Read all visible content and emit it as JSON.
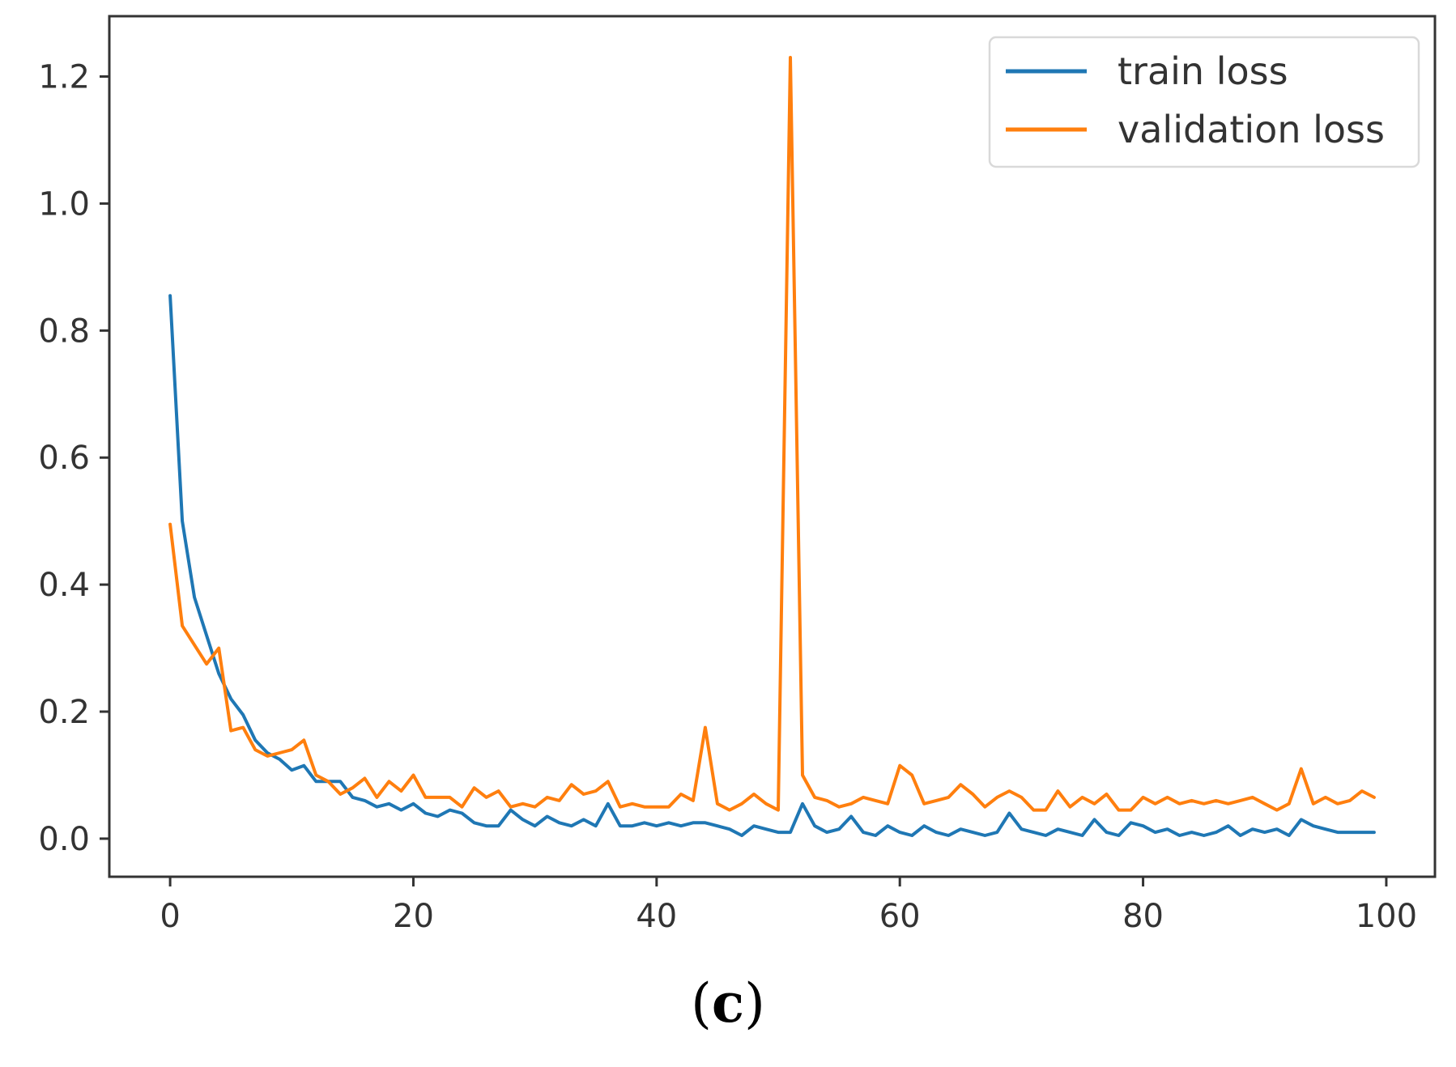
{
  "caption": {
    "open": "(",
    "letter": "c",
    "close": ")"
  },
  "colors": {
    "train": "#1f77b4",
    "validation": "#ff7f0e",
    "axes": "#333333"
  },
  "chart_data": {
    "type": "line",
    "title": "",
    "xlabel": "",
    "ylabel": "",
    "xlim": [
      -5,
      104
    ],
    "ylim": [
      -0.06,
      1.295
    ],
    "xticks": [
      0,
      20,
      40,
      60,
      80,
      100
    ],
    "xtick_labels": [
      "0",
      "20",
      "40",
      "60",
      "80",
      "100"
    ],
    "yticks": [
      0.0,
      0.2,
      0.4,
      0.6,
      0.8,
      1.0,
      1.2
    ],
    "ytick_labels": [
      "0.0",
      "0.2",
      "0.4",
      "0.6",
      "0.8",
      "1.0",
      "1.2"
    ],
    "legend_position": "top-right",
    "grid": false,
    "series": [
      {
        "name": "train loss",
        "color": "#1f77b4",
        "x": [
          0,
          1,
          2,
          3,
          4,
          5,
          6,
          7,
          8,
          9,
          10,
          11,
          12,
          13,
          14,
          15,
          16,
          17,
          18,
          19,
          20,
          21,
          22,
          23,
          24,
          25,
          26,
          27,
          28,
          29,
          30,
          31,
          32,
          33,
          34,
          35,
          36,
          37,
          38,
          39,
          40,
          41,
          42,
          43,
          44,
          45,
          46,
          47,
          48,
          49,
          50,
          51,
          52,
          53,
          54,
          55,
          56,
          57,
          58,
          59,
          60,
          61,
          62,
          63,
          64,
          65,
          66,
          67,
          68,
          69,
          70,
          71,
          72,
          73,
          74,
          75,
          76,
          77,
          78,
          79,
          80,
          81,
          82,
          83,
          84,
          85,
          86,
          87,
          88,
          89,
          90,
          91,
          92,
          93,
          94,
          95,
          96,
          97,
          98,
          99
        ],
        "values": [
          0.855,
          0.5,
          0.38,
          0.32,
          0.26,
          0.22,
          0.195,
          0.155,
          0.135,
          0.125,
          0.108,
          0.115,
          0.09,
          0.09,
          0.09,
          0.065,
          0.06,
          0.05,
          0.055,
          0.045,
          0.055,
          0.04,
          0.035,
          0.045,
          0.04,
          0.025,
          0.02,
          0.02,
          0.045,
          0.03,
          0.02,
          0.035,
          0.025,
          0.02,
          0.03,
          0.02,
          0.055,
          0.02,
          0.02,
          0.025,
          0.02,
          0.025,
          0.02,
          0.025,
          0.025,
          0.02,
          0.015,
          0.005,
          0.02,
          0.015,
          0.01,
          0.01,
          0.055,
          0.02,
          0.01,
          0.015,
          0.035,
          0.01,
          0.005,
          0.02,
          0.01,
          0.005,
          0.02,
          0.01,
          0.005,
          0.015,
          0.01,
          0.005,
          0.01,
          0.04,
          0.015,
          0.01,
          0.005,
          0.015,
          0.01,
          0.005,
          0.03,
          0.01,
          0.005,
          0.025,
          0.02,
          0.01,
          0.015,
          0.005,
          0.01,
          0.005,
          0.01,
          0.02,
          0.005,
          0.015,
          0.01,
          0.015,
          0.005,
          0.03,
          0.02,
          0.015,
          0.01,
          0.01,
          0.01,
          0.01
        ]
      },
      {
        "name": "validation loss",
        "color": "#ff7f0e",
        "x": [
          0,
          1,
          2,
          3,
          4,
          5,
          6,
          7,
          8,
          9,
          10,
          11,
          12,
          13,
          14,
          15,
          16,
          17,
          18,
          19,
          20,
          21,
          22,
          23,
          24,
          25,
          26,
          27,
          28,
          29,
          30,
          31,
          32,
          33,
          34,
          35,
          36,
          37,
          38,
          39,
          40,
          41,
          42,
          43,
          44,
          45,
          46,
          47,
          48,
          49,
          50,
          51,
          52,
          53,
          54,
          55,
          56,
          57,
          58,
          59,
          60,
          61,
          62,
          63,
          64,
          65,
          66,
          67,
          68,
          69,
          70,
          71,
          72,
          73,
          74,
          75,
          76,
          77,
          78,
          79,
          80,
          81,
          82,
          83,
          84,
          85,
          86,
          87,
          88,
          89,
          90,
          91,
          92,
          93,
          94,
          95,
          96,
          97,
          98,
          99
        ],
        "values": [
          0.495,
          0.335,
          0.305,
          0.275,
          0.3,
          0.17,
          0.175,
          0.14,
          0.13,
          0.135,
          0.14,
          0.155,
          0.1,
          0.09,
          0.07,
          0.08,
          0.095,
          0.065,
          0.09,
          0.075,
          0.1,
          0.065,
          0.065,
          0.065,
          0.05,
          0.08,
          0.065,
          0.075,
          0.05,
          0.055,
          0.05,
          0.065,
          0.06,
          0.085,
          0.07,
          0.075,
          0.09,
          0.05,
          0.055,
          0.05,
          0.05,
          0.05,
          0.07,
          0.06,
          0.175,
          0.055,
          0.045,
          0.055,
          0.07,
          0.055,
          0.045,
          1.23,
          0.1,
          0.065,
          0.06,
          0.05,
          0.055,
          0.065,
          0.06,
          0.055,
          0.115,
          0.1,
          0.055,
          0.06,
          0.065,
          0.085,
          0.07,
          0.05,
          0.065,
          0.075,
          0.065,
          0.045,
          0.045,
          0.075,
          0.05,
          0.065,
          0.055,
          0.07,
          0.045,
          0.045,
          0.065,
          0.055,
          0.065,
          0.055,
          0.06,
          0.055,
          0.06,
          0.055,
          0.06,
          0.065,
          0.055,
          0.045,
          0.055,
          0.11,
          0.055,
          0.065,
          0.055,
          0.06,
          0.075,
          0.065
        ]
      }
    ]
  }
}
